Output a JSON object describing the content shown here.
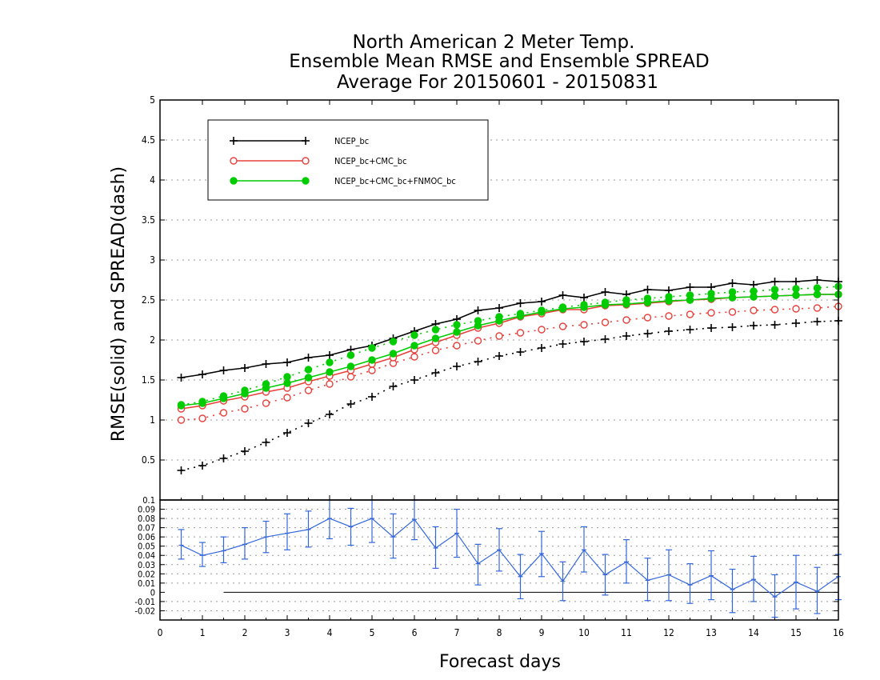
{
  "chart_data": {
    "type": "line",
    "title": [
      "North American 2 Meter Temp.",
      "Ensemble Mean RMSE and Ensemble SPREAD",
      "Average For 20150601 - 20150831"
    ],
    "xlabel": "Forecast days",
    "ylabel": "RMSE(solid) and SPREAD(dash)",
    "xlim": [
      0,
      16
    ],
    "ylim": [
      0,
      5
    ],
    "x_ticks": [
      0,
      1,
      2,
      3,
      4,
      5,
      6,
      7,
      8,
      9,
      10,
      11,
      12,
      13,
      14,
      15,
      16
    ],
    "y_ticks": [
      0.5,
      1,
      1.5,
      2,
      2.5,
      3,
      3.5,
      4,
      4.5,
      5
    ],
    "y_tick_labels": [
      "0.5",
      "1",
      "1.5",
      "2",
      "2.5",
      "3",
      "3.5",
      "4",
      "4.5",
      "5"
    ],
    "grid": true,
    "legend_placement": "top-left",
    "x": [
      0.5,
      1,
      1.5,
      2,
      2.5,
      3,
      3.5,
      4,
      4.5,
      5,
      5.5,
      6,
      6.5,
      7,
      7.5,
      8,
      8.5,
      9,
      9.5,
      10,
      10.5,
      11,
      11.5,
      12,
      12.5,
      13,
      13.5,
      14,
      14.5,
      15,
      15.5,
      16
    ],
    "series": [
      {
        "name": "NCEP_bc",
        "color": "#000000",
        "marker": "plus",
        "rmse": [
          1.53,
          1.57,
          1.62,
          1.65,
          1.7,
          1.72,
          1.78,
          1.81,
          1.88,
          1.93,
          2.02,
          2.11,
          2.2,
          2.26,
          2.37,
          2.4,
          2.46,
          2.48,
          2.56,
          2.53,
          2.6,
          2.57,
          2.63,
          2.62,
          2.66,
          2.66,
          2.71,
          2.69,
          2.73,
          2.73,
          2.75,
          2.73
        ],
        "spread": [
          0.37,
          0.43,
          0.52,
          0.61,
          0.72,
          0.84,
          0.96,
          1.07,
          1.2,
          1.29,
          1.42,
          1.5,
          1.59,
          1.67,
          1.73,
          1.8,
          1.85,
          1.9,
          1.95,
          1.98,
          2.01,
          2.05,
          2.08,
          2.11,
          2.13,
          2.15,
          2.16,
          2.18,
          2.19,
          2.21,
          2.23,
          2.24
        ]
      },
      {
        "name": "NCEP_bc+CMC_bc",
        "color": "#e8403a",
        "marker": "open-circle",
        "rmse": [
          1.14,
          1.18,
          1.24,
          1.29,
          1.35,
          1.4,
          1.48,
          1.55,
          1.62,
          1.7,
          1.78,
          1.88,
          1.97,
          2.06,
          2.15,
          2.21,
          2.29,
          2.33,
          2.38,
          2.38,
          2.43,
          2.44,
          2.46,
          2.48,
          2.5,
          2.51,
          2.53,
          2.54,
          2.55,
          2.56,
          2.57,
          2.57
        ],
        "spread": [
          1.0,
          1.02,
          1.09,
          1.14,
          1.21,
          1.28,
          1.37,
          1.45,
          1.54,
          1.62,
          1.71,
          1.79,
          1.87,
          1.93,
          1.99,
          2.05,
          2.09,
          2.13,
          2.17,
          2.19,
          2.22,
          2.25,
          2.28,
          2.3,
          2.32,
          2.34,
          2.35,
          2.37,
          2.38,
          2.39,
          2.4,
          2.42
        ]
      },
      {
        "name": "NCEP_bc+CMC_bc+FNMOC_bc",
        "color": "#00cc00",
        "marker": "filled-circle",
        "rmse": [
          1.18,
          1.21,
          1.27,
          1.33,
          1.4,
          1.46,
          1.53,
          1.6,
          1.67,
          1.75,
          1.83,
          1.93,
          2.02,
          2.1,
          2.18,
          2.24,
          2.3,
          2.35,
          2.39,
          2.41,
          2.44,
          2.45,
          2.47,
          2.49,
          2.5,
          2.52,
          2.53,
          2.54,
          2.55,
          2.56,
          2.57,
          2.57
        ],
        "spread": [
          1.19,
          1.23,
          1.3,
          1.37,
          1.45,
          1.54,
          1.63,
          1.72,
          1.81,
          1.9,
          1.98,
          2.06,
          2.13,
          2.19,
          2.24,
          2.29,
          2.33,
          2.37,
          2.41,
          2.44,
          2.47,
          2.5,
          2.52,
          2.54,
          2.56,
          2.58,
          2.6,
          2.61,
          2.63,
          2.64,
          2.65,
          2.67
        ]
      }
    ],
    "diff_panel": {
      "ylim": [
        -0.03,
        0.1
      ],
      "y_ticks": [
        -0.02,
        -0.01,
        0,
        0.01,
        0.02,
        0.03,
        0.04,
        0.05,
        0.06,
        0.07,
        0.08,
        0.09,
        0.1
      ],
      "y_tick_labels": [
        "-0.02",
        "-0.01",
        "0",
        "0.01",
        "0.02",
        "0.03",
        "0.04",
        "0.05",
        "0.06",
        "0.07",
        "0.08",
        "0.09",
        "0.1"
      ],
      "color": "#3366dd",
      "x": [
        0.5,
        1,
        1.5,
        2,
        2.5,
        3,
        3.5,
        4,
        4.5,
        5,
        5.5,
        6,
        6.5,
        7,
        7.5,
        8,
        8.5,
        9,
        9.5,
        10,
        10.5,
        11,
        11.5,
        12,
        12.5,
        13,
        13.5,
        14,
        14.5,
        15,
        15.5,
        16
      ],
      "values": [
        0.051,
        0.04,
        0.045,
        0.052,
        0.06,
        0.064,
        0.068,
        0.08,
        0.071,
        0.08,
        0.06,
        0.079,
        0.048,
        0.064,
        0.031,
        0.046,
        0.017,
        0.042,
        0.012,
        0.046,
        0.019,
        0.033,
        0.013,
        0.019,
        0.008,
        0.018,
        0.003,
        0.014,
        -0.005,
        0.011,
        0.001,
        0.017
      ],
      "err_low": [
        0.036,
        0.028,
        0.032,
        0.036,
        0.043,
        0.046,
        0.049,
        0.058,
        0.051,
        0.054,
        0.037,
        0.057,
        0.026,
        0.038,
        0.008,
        0.023,
        -0.007,
        0.017,
        -0.009,
        0.022,
        -0.003,
        0.01,
        -0.009,
        -0.009,
        -0.012,
        -0.008,
        -0.022,
        -0.01,
        -0.027,
        -0.018,
        -0.023,
        -0.008
      ],
      "err_high": [
        0.068,
        0.054,
        0.06,
        0.07,
        0.077,
        0.085,
        0.088,
        0.101,
        0.091,
        0.101,
        0.085,
        0.1,
        0.071,
        0.09,
        0.052,
        0.069,
        0.041,
        0.066,
        0.033,
        0.071,
        0.041,
        0.057,
        0.037,
        0.046,
        0.031,
        0.045,
        0.025,
        0.039,
        0.019,
        0.04,
        0.027,
        0.041
      ],
      "zero_line": 0
    }
  }
}
